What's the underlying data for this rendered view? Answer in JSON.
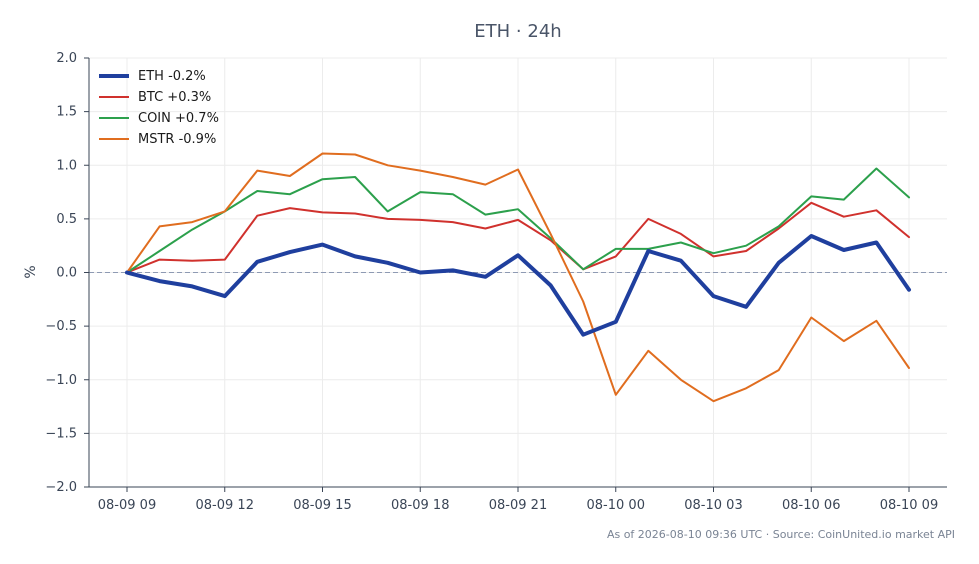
{
  "chart_data": {
    "type": "line",
    "title": "ETH · 24h",
    "ylabel": "%",
    "xlabel": "",
    "ylim": [
      -2.0,
      2.0
    ],
    "yticks": [
      -2.0,
      -1.5,
      -1.0,
      -0.5,
      0.0,
      0.5,
      1.0,
      1.5,
      2.0
    ],
    "ytick_labels": [
      "−2.0",
      "−1.5",
      "−1.0",
      "−0.5",
      "0.0",
      "0.5",
      "1.0",
      "1.5",
      "2.0"
    ],
    "x_hours": [
      0,
      1,
      2,
      3,
      4,
      5,
      6,
      7,
      8,
      9,
      10,
      11,
      12,
      13,
      14,
      15,
      16,
      17,
      18,
      19,
      20,
      21,
      22,
      23,
      24
    ],
    "xtick_hours": [
      0,
      3,
      6,
      9,
      12,
      15,
      18,
      21,
      24
    ],
    "xtick_labels": [
      "08-09 09",
      "08-09 12",
      "08-09 15",
      "08-09 18",
      "08-09 21",
      "08-10 00",
      "08-10 03",
      "08-10 06",
      "08-10 09"
    ],
    "grid": true,
    "zero_line": true,
    "legend_position": "top-left",
    "series": [
      {
        "name": "ETH -0.2%",
        "color": "#1f3f9e",
        "width": 4,
        "values": [
          0.0,
          -0.08,
          -0.13,
          -0.22,
          0.1,
          0.19,
          0.26,
          0.15,
          0.09,
          0.0,
          0.02,
          -0.04,
          0.16,
          -0.12,
          -0.58,
          -0.46,
          0.2,
          0.11,
          -0.22,
          -0.32,
          0.09,
          0.34,
          0.21,
          0.28,
          -0.16
        ]
      },
      {
        "name": "BTC +0.3%",
        "color": "#d0312d",
        "width": 2,
        "values": [
          0.0,
          0.12,
          0.11,
          0.12,
          0.53,
          0.6,
          0.56,
          0.55,
          0.5,
          0.49,
          0.47,
          0.41,
          0.49,
          0.3,
          0.03,
          0.15,
          0.5,
          0.36,
          0.15,
          0.2,
          0.41,
          0.65,
          0.52,
          0.58,
          0.33
        ]
      },
      {
        "name": "COIN +0.7%",
        "color": "#2ca04c",
        "width": 2,
        "values": [
          0.0,
          0.2,
          0.4,
          0.57,
          0.76,
          0.73,
          0.87,
          0.89,
          0.57,
          0.75,
          0.73,
          0.54,
          0.59,
          0.32,
          0.03,
          0.22,
          0.22,
          0.28,
          0.18,
          0.25,
          0.43,
          0.71,
          0.68,
          0.97,
          0.7
        ]
      },
      {
        "name": "MSTR -0.9%",
        "color": "#e06d1f",
        "width": 2,
        "values": [
          0.0,
          0.43,
          0.47,
          0.57,
          0.95,
          0.9,
          1.11,
          1.1,
          1.0,
          0.95,
          0.89,
          0.82,
          0.96,
          0.36,
          -0.27,
          -1.14,
          -0.73,
          -1.0,
          -1.2,
          -1.08,
          -0.91,
          -0.42,
          -0.64,
          -0.45,
          -0.89
        ]
      }
    ]
  },
  "footer": {
    "text": "As of 2026-08-10 09:36 UTC · Source: CoinUnited.io market API"
  }
}
